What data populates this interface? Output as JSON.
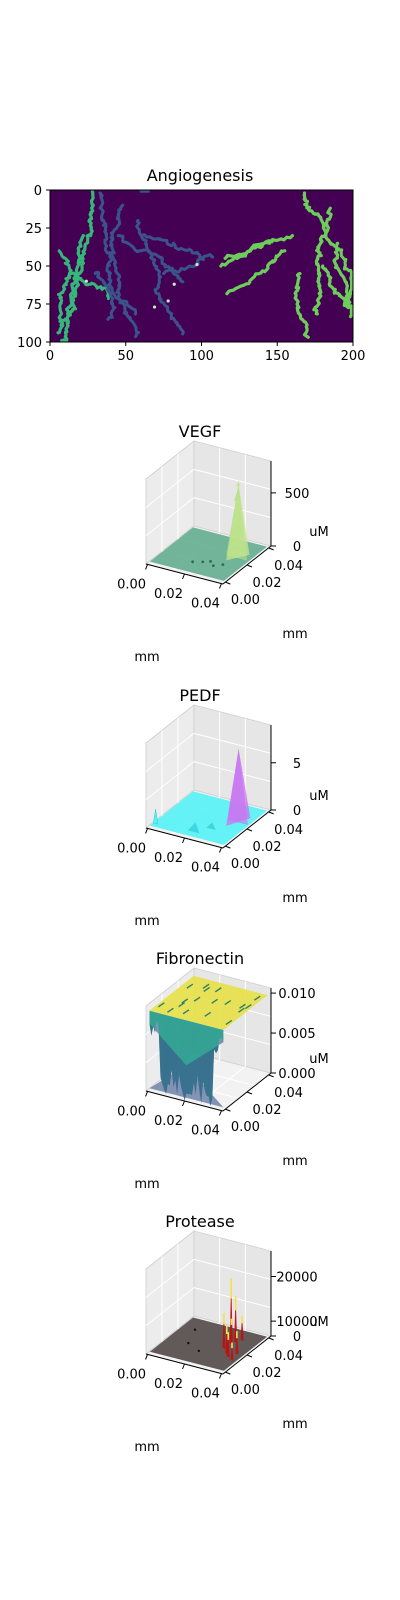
{
  "chart_data": [
    {
      "type": "heatmap",
      "title": "Angiogenesis",
      "xlim": [
        0,
        200
      ],
      "ylim": [
        100,
        0
      ],
      "xticks": [
        "0",
        "50",
        "100",
        "150",
        "200"
      ],
      "yticks": [
        "0",
        "25",
        "50",
        "75",
        "100"
      ],
      "colors": {
        "background": "#440154",
        "network_left_outer": "#35b779",
        "network_left_inner": "#3b528b",
        "network_right": "#6ccd5a",
        "tips": "#c8e6c9"
      }
    },
    {
      "type": "surface",
      "title": "VEGF",
      "xlabel": "mm",
      "zlabel": "uM",
      "xticks": [
        "0.00",
        "0.02",
        "0.04"
      ],
      "yticks": [
        "0.00",
        "0.02",
        "0.04"
      ],
      "zticks": [
        "0",
        "500"
      ],
      "peak": 750,
      "colors": {
        "base": "#5aa98a",
        "peak": "#d6f08c"
      }
    },
    {
      "type": "surface",
      "title": "PEDF",
      "xlabel": "mm",
      "zlabel": "uM",
      "xticks": [
        "0.00",
        "0.02",
        "0.04"
      ],
      "yticks": [
        "0.00",
        "0.02",
        "0.04"
      ],
      "zticks": [
        "0",
        "5"
      ],
      "peak": 8,
      "colors": {
        "base": "#55f2f7",
        "peak": "#d070f0"
      }
    },
    {
      "type": "surface",
      "title": "Fibronectin",
      "xlabel": "mm",
      "zlabel": "uM",
      "xticks": [
        "0.00",
        "0.02",
        "0.04"
      ],
      "yticks": [
        "0.00",
        "0.02",
        "0.04"
      ],
      "zticks": [
        "0.000",
        "0.005",
        "0.010"
      ],
      "peak": 0.01,
      "colors": {
        "top": "#e6e14a",
        "mid": "#2a9d8f",
        "low": "#3b528b"
      }
    },
    {
      "type": "surface",
      "title": "Protease",
      "xlabel": "mm",
      "zlabel": "uM",
      "xticks": [
        "0.00",
        "0.02",
        "0.04"
      ],
      "yticks": [
        "0.00",
        "0.02",
        "0.04"
      ],
      "zticks": [
        "0",
        "10000",
        "20000"
      ],
      "peak": 24000,
      "colors": {
        "base": "#5a5050",
        "spike_low": "#c01010",
        "spike_high": "#f5e04a"
      }
    }
  ]
}
